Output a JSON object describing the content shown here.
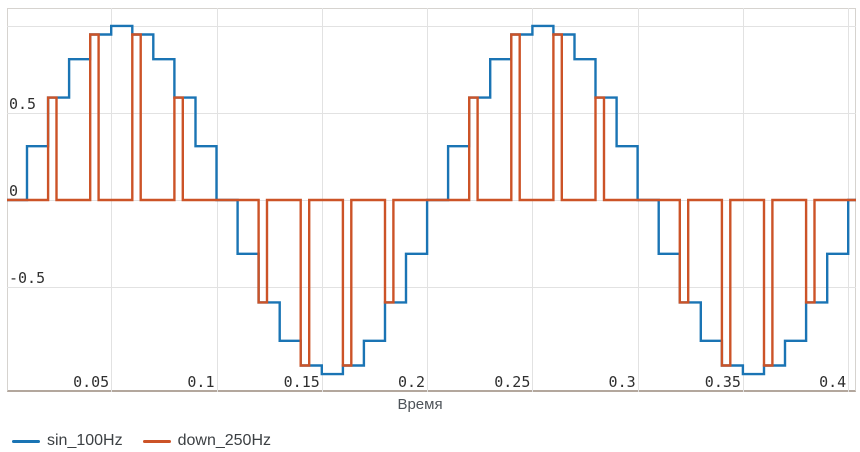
{
  "chart_data": {
    "type": "line",
    "step_mode": "step-after",
    "title": "",
    "xlabel": "Время",
    "ylabel": "",
    "xlim": [
      0.0005,
      0.4037
    ],
    "ylim": [
      -1.103,
      1.103
    ],
    "x_ticks": [
      0.05,
      0.1,
      0.15,
      0.2,
      0.25,
      0.3,
      0.35,
      0.4
    ],
    "x_tick_labels": [
      "0.05",
      "0.1",
      "0.15",
      "0.2",
      "0.25",
      "0.3",
      "0.35",
      "0.4"
    ],
    "y_gridlines": [
      1,
      0.5,
      0,
      -0.5
    ],
    "y_ticks": [
      {
        "value": 0.5,
        "label": "0.5"
      },
      {
        "value": 0,
        "label": "0"
      },
      {
        "value": -0.5,
        "label": "-0.5"
      }
    ],
    "grid": true,
    "legend_position": "bottom-left",
    "series": [
      {
        "name": "sin_100Hz",
        "color": "#1a74b4",
        "kind": "step-hold",
        "t_start": 0,
        "dt": 0.01,
        "values": [
          0,
          0.309,
          0.588,
          0.809,
          0.951,
          1,
          0.951,
          0.809,
          0.588,
          0.309,
          0,
          -0.309,
          -0.588,
          -0.809,
          -0.951,
          -1,
          -0.951,
          -0.809,
          -0.588,
          -0.309,
          0,
          0.309,
          0.588,
          0.809,
          0.951,
          1,
          0.951,
          0.809,
          0.588,
          0.309,
          0,
          -0.309,
          -0.588,
          -0.809,
          -0.951,
          -1,
          -0.951,
          -0.809,
          -0.588,
          -0.309,
          0
        ]
      },
      {
        "name": "down_250Hz",
        "color": "#cc5327",
        "kind": "zero-stuffed-pulses",
        "baseline": 0,
        "pulse_width": 0.004,
        "pulses": [
          [
            0.02,
            0.588
          ],
          [
            0.04,
            0.951
          ],
          [
            0.06,
            0.951
          ],
          [
            0.08,
            0.588
          ],
          [
            0.12,
            -0.588
          ],
          [
            0.14,
            -0.951
          ],
          [
            0.16,
            -0.951
          ],
          [
            0.18,
            -0.588
          ],
          [
            0.22,
            0.588
          ],
          [
            0.24,
            0.951
          ],
          [
            0.26,
            0.951
          ],
          [
            0.28,
            0.588
          ],
          [
            0.32,
            -0.588
          ],
          [
            0.34,
            -0.951
          ],
          [
            0.36,
            -0.951
          ],
          [
            0.38,
            -0.588
          ]
        ]
      }
    ],
    "colors": {
      "background": "#ffffff",
      "gridline": "#e2e2e2",
      "plot_border": "#d6d3cf",
      "plot_border_bottom": "#b3a79d",
      "tick_text": "#2f2f2f",
      "axis_title_text": "#4e5359",
      "legend_text": "#3c4043"
    }
  },
  "legend": {
    "items": [
      {
        "label": "sin_100Hz"
      },
      {
        "label": "down_250Hz"
      }
    ]
  }
}
